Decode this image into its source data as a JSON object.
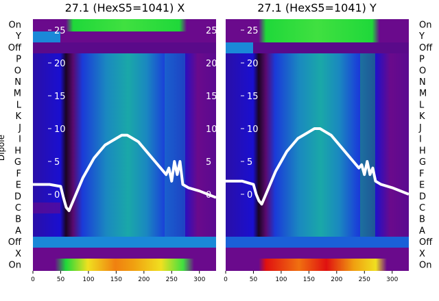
{
  "ylabel": "Dipole",
  "categories": [
    "On",
    "X",
    "Off",
    "A",
    "B",
    "C",
    "D",
    "E",
    "F",
    "G",
    "H",
    "I",
    "J",
    "K",
    "L",
    "M",
    "N",
    "O",
    "P",
    "Off",
    "Y",
    "On"
  ],
  "panels": [
    {
      "title": "27.1 (HexS5=1041) X",
      "xticks": [
        "0",
        "50",
        "100",
        "150",
        "200",
        "250",
        "300"
      ],
      "yticks": [
        "0",
        "5",
        "10",
        "15",
        "20",
        "25"
      ],
      "y_tick_values": [
        0,
        5,
        10,
        15,
        20,
        25
      ]
    },
    {
      "title": "27.1 (HexS5=1041) Y",
      "xticks": [
        "0",
        "50",
        "100",
        "150",
        "200",
        "250",
        "300"
      ],
      "yticks": [
        "0",
        "5",
        "10",
        "15",
        "20",
        "25"
      ],
      "y_tick_values": [
        0,
        5,
        10,
        15,
        20,
        25
      ]
    }
  ],
  "colors": {
    "purple": "#6a0a8c",
    "blue": "#1a0fd0",
    "teal": "#1aa0a8",
    "green": "#1fd83a",
    "red": "#e01010",
    "dark": "#1a0522",
    "line": "#ffffff"
  },
  "chart_data": [
    {
      "type": "heatmap",
      "title": "27.1 (HexS5=1041) X",
      "xlim": [
        0,
        330
      ],
      "ylabel": "Dipole",
      "overlay_line": {
        "x": [
          0,
          30,
          50,
          55,
          60,
          65,
          70,
          80,
          90,
          100,
          110,
          120,
          130,
          140,
          150,
          160,
          170,
          180,
          190,
          200,
          210,
          220,
          230,
          240,
          245,
          250,
          255,
          260,
          265,
          270,
          280,
          300,
          330
        ],
        "y": [
          1.5,
          1.5,
          1.2,
          -0.5,
          -2,
          -2.5,
          -1.5,
          0.5,
          2.5,
          4,
          5.5,
          6.5,
          7.5,
          8,
          8.5,
          9,
          9,
          8.5,
          8,
          7,
          6,
          5,
          4,
          3,
          4,
          2,
          5,
          3,
          5,
          1.5,
          1,
          0.5,
          -0.5
        ]
      }
    },
    {
      "type": "heatmap",
      "title": "27.1 (HexS5=1041) Y",
      "xlim": [
        0,
        330
      ],
      "overlay_line": {
        "x": [
          0,
          30,
          50,
          55,
          60,
          65,
          70,
          80,
          90,
          100,
          110,
          120,
          130,
          140,
          150,
          160,
          170,
          180,
          190,
          200,
          210,
          220,
          230,
          240,
          245,
          250,
          255,
          260,
          265,
          270,
          280,
          300,
          330
        ],
        "y": [
          2,
          2,
          1.5,
          0,
          -1,
          -1.5,
          -0.5,
          1.5,
          3.5,
          5,
          6.5,
          7.5,
          8.5,
          9,
          9.5,
          10,
          10,
          9.5,
          9,
          8,
          7,
          6,
          5,
          4,
          4.5,
          3,
          5,
          3,
          4,
          2,
          1.5,
          1,
          0
        ]
      }
    }
  ]
}
